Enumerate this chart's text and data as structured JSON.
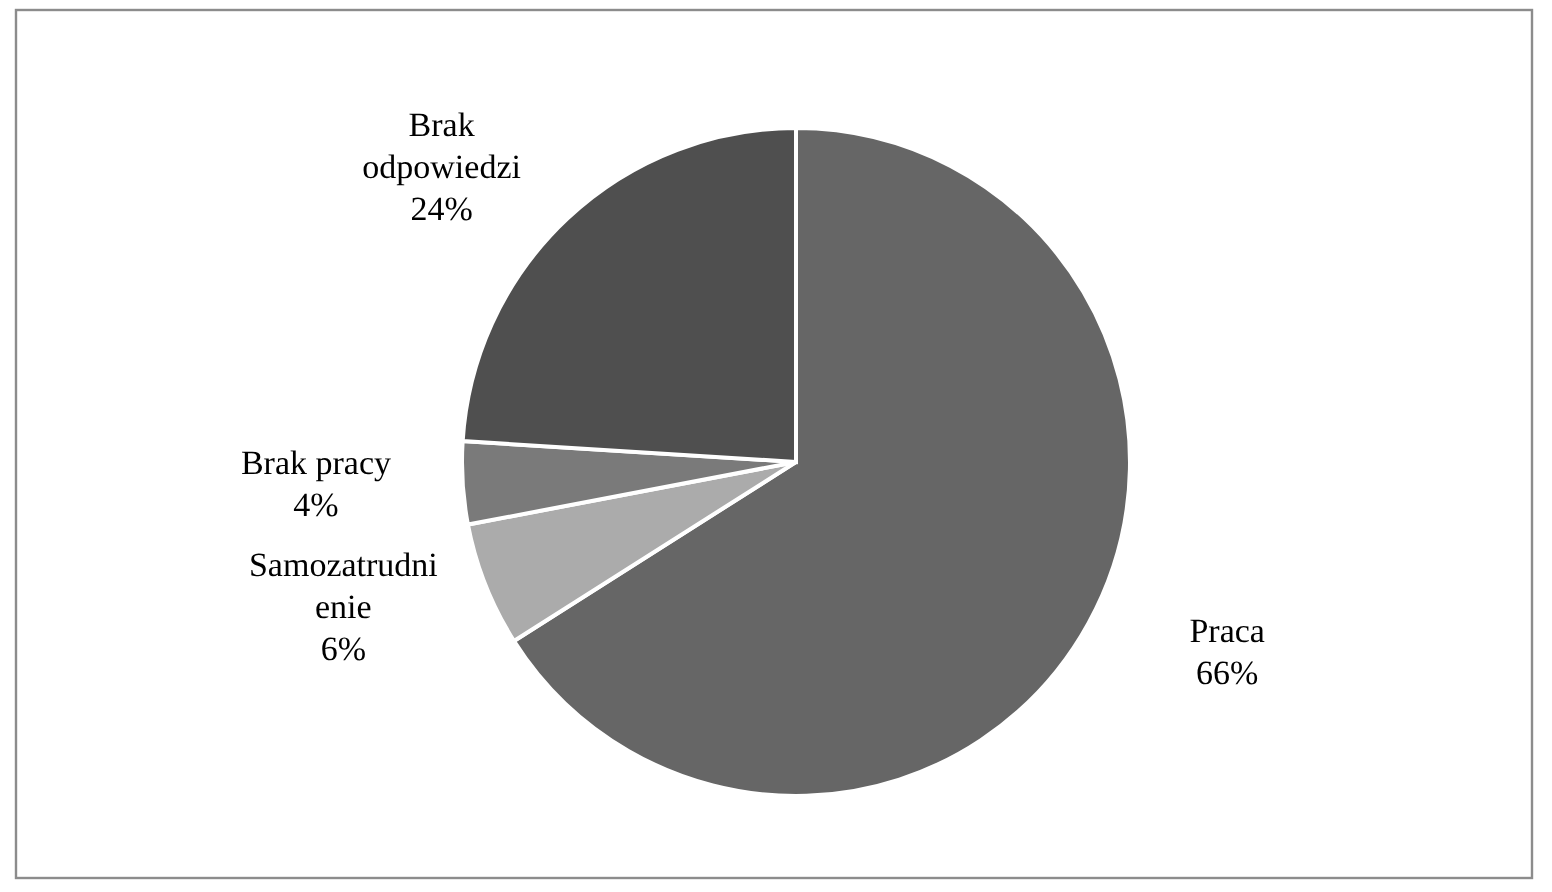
{
  "chart_data": {
    "type": "pie",
    "categories": [
      "Praca",
      "Samozatrudnienie",
      "Brak pracy",
      "Brak odpowiedzi"
    ],
    "values": [
      66,
      6,
      4,
      24
    ],
    "colors": [
      "#666666",
      "#ababab",
      "#7a7a7a",
      "#4f4f4f"
    ],
    "value_labels": [
      "66%",
      "6%",
      "4%",
      "24%"
    ]
  }
}
